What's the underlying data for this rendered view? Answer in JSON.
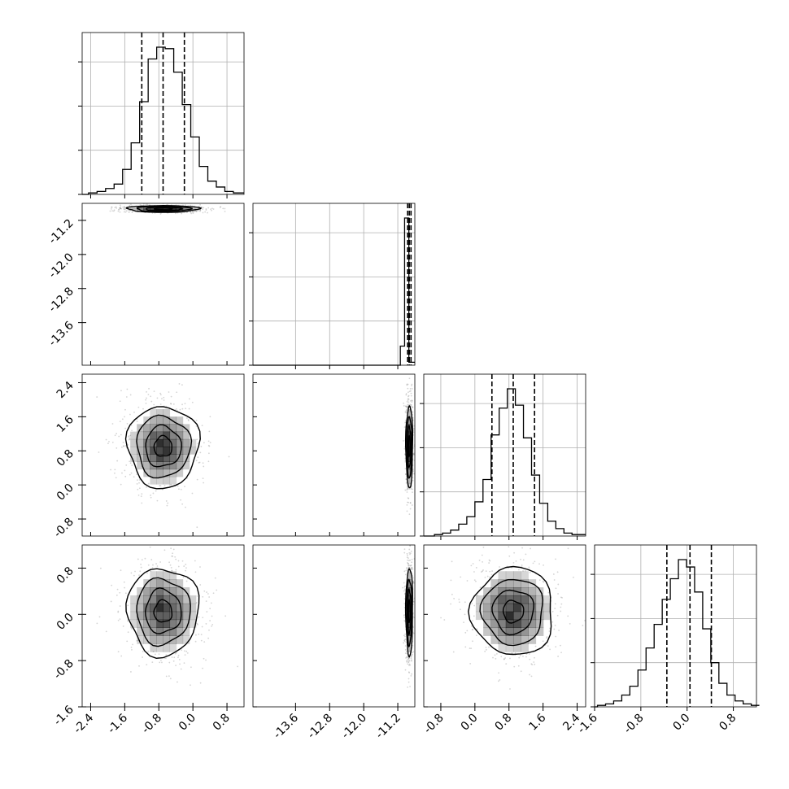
{
  "chart_data": {
    "type": "corner",
    "parameters": 4,
    "grid": true,
    "colors": {
      "line": "#000000",
      "grid": "#b0b0b0",
      "density": "#000000"
    },
    "params": [
      {
        "range": [
          -2.6,
          1.2
        ],
        "ticks": [
          "-2.4",
          "-1.6",
          "-0.8",
          "0.0",
          "0.8"
        ],
        "tick_values": [
          -2.4,
          -1.6,
          -0.8,
          0.0,
          0.8
        ],
        "mean": -0.7,
        "sd": 0.42,
        "quantiles": [
          -1.2,
          -0.7,
          -0.2
        ]
      },
      {
        "range": [
          -14.6,
          -10.8
        ],
        "ticks": [
          "-13.6",
          "-12.8",
          "-12.0",
          "-11.2"
        ],
        "tick_values": [
          -13.6,
          -12.8,
          -12.0,
          -11.2
        ],
        "mean": -10.93,
        "sd": 0.04,
        "quantiles": [
          -10.97,
          -10.93,
          -10.89
        ]
      },
      {
        "range": [
          -1.2,
          2.6
        ],
        "ticks": [
          "-0.8",
          "0.0",
          "0.8",
          "1.6",
          "2.4"
        ],
        "tick_values": [
          -0.8,
          0.0,
          0.8,
          1.6,
          2.4
        ],
        "mean": 0.9,
        "sd": 0.48,
        "quantiles": [
          0.4,
          0.9,
          1.4
        ]
      },
      {
        "range": [
          -1.6,
          1.2
        ],
        "ticks": [
          "-1.6",
          "-0.8",
          "0.0",
          "0.8"
        ],
        "tick_values": [
          -1.6,
          -0.8,
          0.0,
          0.8
        ],
        "mean": 0.05,
        "sd": 0.38,
        "quantiles": [
          -0.35,
          0.05,
          0.42
        ]
      }
    ],
    "histograms": [
      {
        "param": 0,
        "bin_edges_start": -2.45,
        "bin_width": 0.2,
        "counts": [
          1,
          2,
          4,
          7,
          17,
          35,
          63,
          92,
          100,
          99,
          83,
          61,
          39,
          19,
          9,
          5,
          2,
          1
        ]
      },
      {
        "param": 1,
        "bin_edges_start": -11.14,
        "bin_width": 0.1,
        "counts": [
          13,
          100,
          2
        ]
      },
      {
        "param": 2,
        "bin_edges_start": -0.95,
        "bin_width": 0.19,
        "counts": [
          1,
          2,
          4,
          8,
          13,
          23,
          38,
          68,
          86,
          99,
          88,
          66,
          41,
          22,
          10,
          5,
          2,
          1
        ]
      },
      {
        "param": 3,
        "bin_edges_start": -1.55,
        "bin_width": 0.14,
        "counts": [
          1,
          2,
          4,
          8,
          14,
          25,
          40,
          56,
          73,
          87,
          100,
          95,
          78,
          53,
          30,
          16,
          8,
          4,
          2,
          1
        ]
      }
    ],
    "pairs": [
      {
        "x": 0,
        "y": 1,
        "rx": 0.42,
        "ry": 0.04
      },
      {
        "x": 0,
        "y": 2,
        "rx": 0.42,
        "ry": 0.48
      },
      {
        "x": 1,
        "y": 2,
        "rx": 0.04,
        "ry": 0.48
      },
      {
        "x": 0,
        "y": 3,
        "rx": 0.42,
        "ry": 0.38
      },
      {
        "x": 1,
        "y": 3,
        "rx": 0.04,
        "ry": 0.38
      },
      {
        "x": 2,
        "y": 3,
        "rx": 0.48,
        "ry": 0.38
      }
    ],
    "contour_levels_sigma": [
      0.5,
      1.0,
      1.5,
      2.0
    ]
  }
}
